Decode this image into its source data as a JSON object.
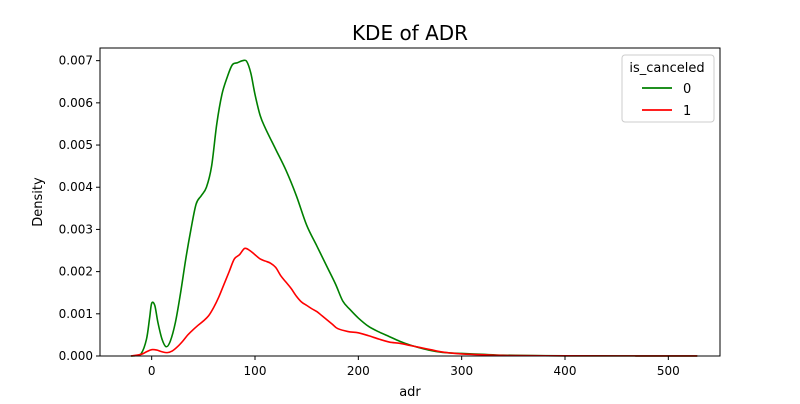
{
  "chart_data": {
    "type": "line",
    "title": "KDE of ADR",
    "xlabel": "adr",
    "ylabel": "Density",
    "xlim": [
      -50,
      550
    ],
    "ylim": [
      0,
      0.0073
    ],
    "x_ticks": [
      0,
      100,
      200,
      300,
      400,
      500
    ],
    "y_ticks": [
      0.0,
      0.001,
      0.002,
      0.003,
      0.004,
      0.005,
      0.006,
      0.007
    ],
    "grid": false,
    "legend": {
      "title": "is_canceled",
      "placement": "top-right"
    },
    "series": [
      {
        "name": "0",
        "color": "#008000",
        "points": [
          [
            -20,
            0.0
          ],
          [
            -15,
            1e-05
          ],
          [
            -10,
            6e-05
          ],
          [
            -5,
            0.0004
          ],
          [
            -2,
            0.0009
          ],
          [
            0,
            0.00125
          ],
          [
            3,
            0.0012
          ],
          [
            6,
            0.0008
          ],
          [
            10,
            0.0004
          ],
          [
            14,
            0.00022
          ],
          [
            18,
            0.00035
          ],
          [
            23,
            0.0008
          ],
          [
            28,
            0.0015
          ],
          [
            33,
            0.0023
          ],
          [
            38,
            0.003
          ],
          [
            43,
            0.0036
          ],
          [
            48,
            0.0038
          ],
          [
            53,
            0.004
          ],
          [
            58,
            0.0045
          ],
          [
            63,
            0.0055
          ],
          [
            68,
            0.0062
          ],
          [
            73,
            0.0066
          ],
          [
            78,
            0.0069
          ],
          [
            83,
            0.00695
          ],
          [
            88,
            0.007
          ],
          [
            92,
            0.00698
          ],
          [
            96,
            0.0067
          ],
          [
            100,
            0.0062
          ],
          [
            105,
            0.0057
          ],
          [
            110,
            0.0054
          ],
          [
            120,
            0.0049
          ],
          [
            130,
            0.0044
          ],
          [
            140,
            0.0038
          ],
          [
            150,
            0.0031
          ],
          [
            160,
            0.0026
          ],
          [
            170,
            0.0021
          ],
          [
            178,
            0.0017
          ],
          [
            185,
            0.0013
          ],
          [
            192,
            0.0011
          ],
          [
            200,
            0.0009
          ],
          [
            210,
            0.0007
          ],
          [
            220,
            0.00057
          ],
          [
            230,
            0.00046
          ],
          [
            240,
            0.00035
          ],
          [
            250,
            0.00026
          ],
          [
            260,
            0.00019
          ],
          [
            270,
            0.00013
          ],
          [
            280,
            9e-05
          ],
          [
            290,
            7e-05
          ],
          [
            300,
            6e-05
          ],
          [
            320,
            4e-05
          ],
          [
            340,
            2e-05
          ],
          [
            370,
            1e-05
          ],
          [
            400,
            5e-06
          ],
          [
            450,
            3e-06
          ],
          [
            500,
            2e-06
          ],
          [
            528,
            1e-06
          ]
        ]
      },
      {
        "name": "1",
        "color": "#ff0000",
        "points": [
          [
            -20,
            0.0
          ],
          [
            -10,
            4e-05
          ],
          [
            -5,
            0.0001
          ],
          [
            0,
            0.00015
          ],
          [
            5,
            0.00014
          ],
          [
            10,
            0.0001
          ],
          [
            15,
            8e-05
          ],
          [
            20,
            0.00012
          ],
          [
            25,
            0.00022
          ],
          [
            30,
            0.00035
          ],
          [
            35,
            0.0005
          ],
          [
            40,
            0.00062
          ],
          [
            45,
            0.00073
          ],
          [
            50,
            0.00083
          ],
          [
            55,
            0.00095
          ],
          [
            60,
            0.00115
          ],
          [
            65,
            0.0014
          ],
          [
            70,
            0.0017
          ],
          [
            75,
            0.002
          ],
          [
            80,
            0.0023
          ],
          [
            85,
            0.0024
          ],
          [
            90,
            0.00255
          ],
          [
            95,
            0.0025
          ],
          [
            100,
            0.0024
          ],
          [
            105,
            0.0023
          ],
          [
            110,
            0.00225
          ],
          [
            115,
            0.0022
          ],
          [
            120,
            0.0021
          ],
          [
            125,
            0.0019
          ],
          [
            130,
            0.00175
          ],
          [
            135,
            0.0016
          ],
          [
            140,
            0.00142
          ],
          [
            145,
            0.00128
          ],
          [
            150,
            0.0012
          ],
          [
            155,
            0.00112
          ],
          [
            160,
            0.00105
          ],
          [
            165,
            0.00095
          ],
          [
            170,
            0.00085
          ],
          [
            175,
            0.00075
          ],
          [
            180,
            0.00065
          ],
          [
            190,
            0.00058
          ],
          [
            200,
            0.00055
          ],
          [
            210,
            0.00048
          ],
          [
            220,
            0.0004
          ],
          [
            230,
            0.00033
          ],
          [
            240,
            0.0003
          ],
          [
            250,
            0.00025
          ],
          [
            260,
            0.0002
          ],
          [
            270,
            0.00015
          ],
          [
            280,
            0.0001
          ],
          [
            290,
            7e-05
          ],
          [
            300,
            5e-05
          ],
          [
            320,
            3e-05
          ],
          [
            350,
            1e-05
          ],
          [
            400,
            5e-06
          ],
          [
            450,
            3e-06
          ],
          [
            500,
            2e-06
          ],
          [
            528,
            1e-06
          ]
        ]
      }
    ]
  }
}
